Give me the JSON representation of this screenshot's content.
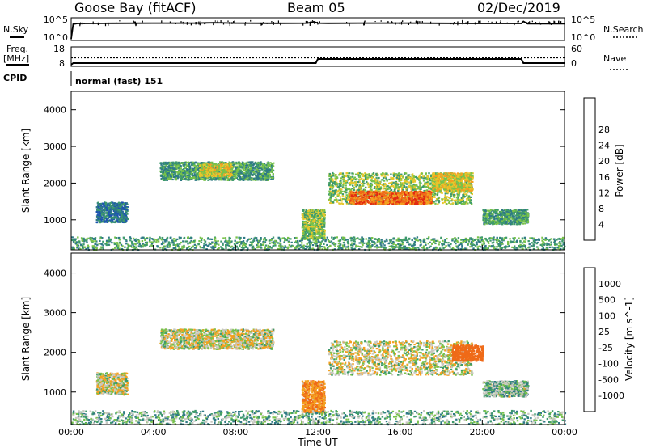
{
  "header": {
    "station": "Goose Bay (fitACF)",
    "beam": "Beam 05",
    "date": "02/Dec/2019"
  },
  "nsky_panel": {
    "label": "N.Sky",
    "left_ticks": [
      "10^5",
      "10^0"
    ],
    "right_label": "N.Search",
    "right_ticks": [
      "10^5",
      "10^0"
    ]
  },
  "freq_panel": {
    "label_line1": "Freq.",
    "label_line2": "[MHz]",
    "left_ticks": [
      "18",
      "8"
    ],
    "right_label": "Nave",
    "right_ticks": [
      "60",
      "0"
    ]
  },
  "cpid": {
    "label": "CPID",
    "value": "normal (fast) 151"
  },
  "x_axis": {
    "label": "Time UT",
    "ticks": [
      "00:00",
      "04:00",
      "08:00",
      "12:00",
      "16:00",
      "20:00",
      "00:00"
    ]
  },
  "colors": {
    "power": [
      "#1e33d4",
      "#1d55b0",
      "#2f7a86",
      "#3e9a6b",
      "#78c24a",
      "#e7c72c",
      "#f3a020",
      "#ef6a18",
      "#e22a12"
    ],
    "velocity": [
      "#1e33d4",
      "#1d55b0",
      "#2f7a86",
      "#3e9a6b",
      "#78c24a",
      "#c8c8c0",
      "#f3a020",
      "#ef6a18",
      "#e22a12"
    ]
  },
  "chart_data": [
    {
      "type": "line",
      "title": "N.Sky / N.Search",
      "x_range_hours": [
        0,
        24
      ],
      "series": [
        {
          "name": "N.Sky",
          "x": [
            0,
            0.1,
            0.3,
            2,
            4,
            6,
            7,
            8,
            10,
            11.5,
            11.8,
            12,
            12.5,
            14,
            16,
            18,
            20,
            21.9,
            22,
            22.2,
            24
          ],
          "y": [
            1,
            6000,
            9000,
            10000,
            11000,
            11000,
            14000,
            11000,
            10000,
            11000,
            25000,
            11000,
            10000,
            11000,
            11000,
            10000,
            9000,
            9000,
            30000,
            8000,
            8000
          ]
        }
      ],
      "ylim": [
        "10^0",
        "10^5"
      ]
    },
    {
      "type": "line",
      "title": "Freq. / Nave",
      "x_range_hours": [
        0,
        24
      ],
      "series": [
        {
          "name": "Freq.",
          "x": [
            0,
            0.1,
            11.9,
            12.0,
            21.9,
            22.0,
            24
          ],
          "y": [
            8,
            9,
            9,
            11.5,
            11.5,
            9,
            9
          ]
        },
        {
          "name": "Nave",
          "x": [
            0,
            24
          ],
          "y": [
            26,
            26
          ]
        }
      ],
      "ylim_left": [
        8,
        18
      ],
      "ylim_right": [
        0,
        60
      ]
    },
    {
      "type": "heatmap",
      "quantity": "Power",
      "x_label": "Time UT",
      "x_ticks": [
        "00:00",
        "04:00",
        "08:00",
        "12:00",
        "16:00",
        "20:00",
        "00:00"
      ],
      "y_label": "Slant Range [km]",
      "y_ticks": [
        1000,
        2000,
        3000,
        4000
      ],
      "ylim": [
        180,
        4500
      ],
      "colorbar": {
        "label": "Power [dB]",
        "ticks": [
          "4",
          "8",
          "12",
          "16",
          "20",
          "24",
          "28"
        ],
        "range": [
          0,
          30
        ]
      },
      "scatter_regions": [
        {
          "t": [
            1.2,
            2.7
          ],
          "r": [
            950,
            1500
          ],
          "level": 2
        },
        {
          "t": [
            4.3,
            9.8
          ],
          "r": [
            2100,
            2600
          ],
          "level": 3
        },
        {
          "t": [
            6.2,
            7.8
          ],
          "r": [
            2200,
            2550
          ],
          "level": 5
        },
        {
          "t": [
            11.2,
            12.3
          ],
          "r": [
            500,
            1300
          ],
          "level": 4
        },
        {
          "t": [
            12.5,
            19.5
          ],
          "r": [
            1450,
            2300
          ],
          "level": 4
        },
        {
          "t": [
            13.5,
            17.5
          ],
          "r": [
            1450,
            1800
          ],
          "level": 7
        },
        {
          "t": [
            17.5,
            19.5
          ],
          "r": [
            1800,
            2300
          ],
          "level": 5
        },
        {
          "t": [
            20.0,
            22.2
          ],
          "r": [
            900,
            1300
          ],
          "level": 3
        },
        {
          "t": [
            0.0,
            24.0
          ],
          "r": [
            200,
            550
          ],
          "level": 3
        }
      ]
    },
    {
      "type": "heatmap",
      "quantity": "Velocity",
      "x_label": "Time UT",
      "x_ticks": [
        "00:00",
        "04:00",
        "08:00",
        "12:00",
        "16:00",
        "20:00",
        "00:00"
      ],
      "y_label": "Slant Range [km]",
      "y_ticks": [
        1000,
        2000,
        3000,
        4000
      ],
      "ylim": [
        180,
        4500
      ],
      "colorbar": {
        "label": "Velocity [m s^-1]",
        "ticks": [
          "1000",
          "500",
          "100",
          "25",
          "-25",
          "-100",
          "-500",
          "-1000"
        ]
      },
      "scatter_regions": [
        {
          "t": [
            1.2,
            2.7
          ],
          "r": [
            950,
            1500
          ],
          "velocity": 0
        },
        {
          "t": [
            4.3,
            9.8
          ],
          "r": [
            2100,
            2600
          ],
          "velocity": 0
        },
        {
          "t": [
            11.2,
            12.3
          ],
          "r": [
            500,
            1300
          ],
          "velocity": -100
        },
        {
          "t": [
            12.5,
            19.5
          ],
          "r": [
            1450,
            2300
          ],
          "velocity": 0
        },
        {
          "t": [
            18.5,
            20.0
          ],
          "r": [
            1800,
            2200
          ],
          "velocity": -300
        },
        {
          "t": [
            20.0,
            22.2
          ],
          "r": [
            900,
            1300
          ],
          "velocity": 50
        },
        {
          "t": [
            0.0,
            24.0
          ],
          "r": [
            200,
            550
          ],
          "velocity": 60
        }
      ]
    }
  ]
}
